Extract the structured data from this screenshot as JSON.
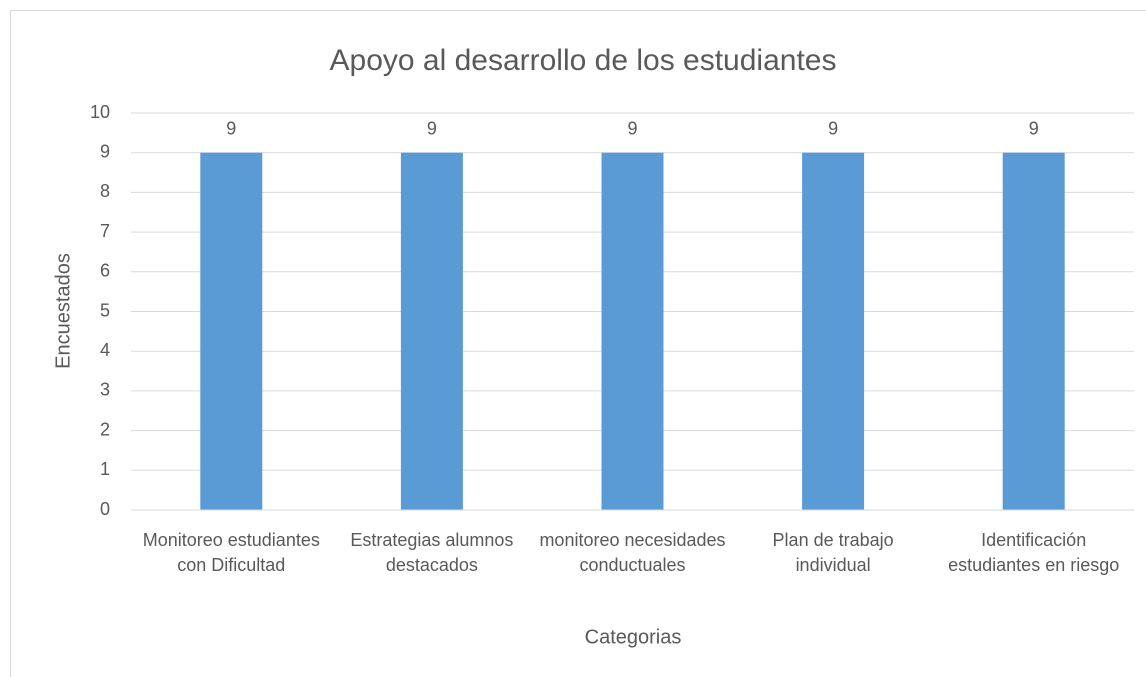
{
  "chart_data": {
    "type": "bar",
    "title": "Apoyo al desarrollo de los estudiantes",
    "x_label": "Categorias",
    "y_label": "Encuestados",
    "categories": [
      "Monitoreo estudiantes con Dificultad",
      "Estrategias alumnos destacados",
      "monitoreo necesidades conductuales",
      "Plan de trabajo individual",
      "Identificación estudiantes en riesgo"
    ],
    "values": [
      9,
      9,
      9,
      9,
      9
    ],
    "color": "#5b9bd5",
    "ylim": [
      0,
      10
    ],
    "yticks": [
      0,
      1,
      2,
      3,
      4,
      5,
      6,
      7,
      8,
      9,
      10
    ],
    "grid": true
  }
}
